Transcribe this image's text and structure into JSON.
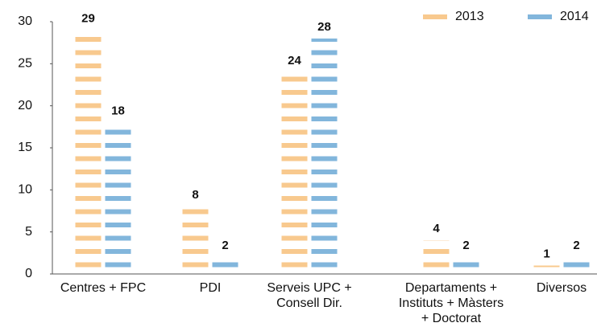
{
  "chart_data": {
    "type": "bar",
    "categories": [
      "Centres + FPC",
      "PDI",
      "Serveis UPC +\nConsell Dir.",
      "Departaments +\nInstituts + Màsters\n+ Doctorat",
      "Diversos"
    ],
    "series": [
      {
        "name": "2013",
        "color": "#f8c98e",
        "values": [
          29,
          8,
          24,
          4,
          1
        ]
      },
      {
        "name": "2014",
        "color": "#82b6dc",
        "values": [
          18,
          2,
          28,
          2,
          2
        ]
      }
    ],
    "ylim": [
      0,
      30
    ],
    "yticks": [
      0,
      5,
      10,
      15,
      20,
      25,
      30
    ],
    "grid": false,
    "legend": "top-right"
  }
}
